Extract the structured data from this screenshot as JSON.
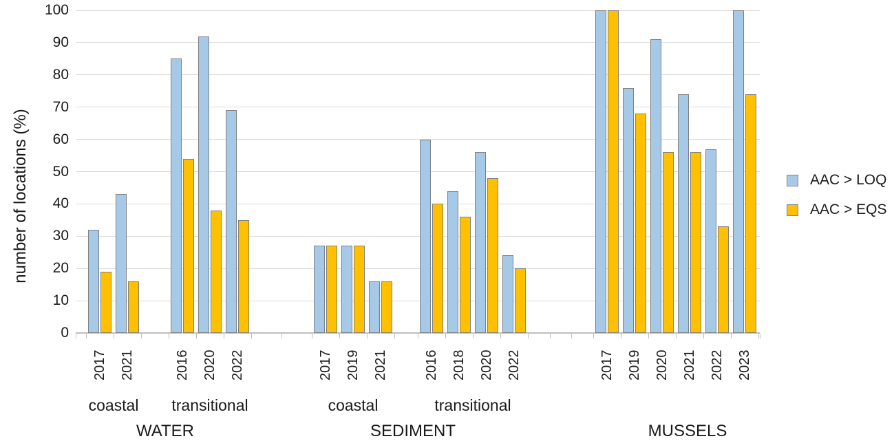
{
  "chart_data": {
    "type": "bar",
    "title": "",
    "ylabel": "number of locations (%)",
    "xlabel": "",
    "ylim": [
      0,
      100
    ],
    "yticks": [
      0,
      10,
      20,
      30,
      40,
      50,
      60,
      70,
      80,
      90,
      100
    ],
    "grid": true,
    "legend_position": "right",
    "legend": [
      {
        "name": "AAC > LOQ",
        "color": "#A6C9E8",
        "border": "#808080"
      },
      {
        "name": "AAC > EQS",
        "color": "#FFC000",
        "border": "#808080"
      }
    ],
    "colors": {
      "gridline": "#D9D9D9",
      "axis": "#BFBFBF",
      "text": "#1A1A1A"
    },
    "sections": [
      {
        "label": "WATER",
        "subgroups": [
          {
            "label": "coastal",
            "years": [
              "2017",
              "2021"
            ],
            "series": [
              {
                "name": "AAC > LOQ",
                "values": [
                  32,
                  43
                ]
              },
              {
                "name": "AAC > EQS",
                "values": [
                  19,
                  16
                ]
              }
            ]
          },
          {
            "label": "transitional",
            "years": [
              "2016",
              "2020",
              "2022"
            ],
            "series": [
              {
                "name": "AAC > LOQ",
                "values": [
                  85,
                  92,
                  69
                ]
              },
              {
                "name": "AAC > EQS",
                "values": [
                  54,
                  38,
                  35
                ]
              }
            ]
          }
        ]
      },
      {
        "label": "SEDIMENT",
        "subgroups": [
          {
            "label": "coastal",
            "years": [
              "2017",
              "2019",
              "2021"
            ],
            "series": [
              {
                "name": "AAC > LOQ",
                "values": [
                  27,
                  27,
                  16
                ]
              },
              {
                "name": "AAC > EQS",
                "values": [
                  27,
                  27,
                  16
                ]
              }
            ]
          },
          {
            "label": "transitional",
            "years": [
              "2016",
              "2018",
              "2020",
              "2022"
            ],
            "series": [
              {
                "name": "AAC > LOQ",
                "values": [
                  60,
                  44,
                  56,
                  24
                ]
              },
              {
                "name": "AAC > EQS",
                "values": [
                  40,
                  36,
                  48,
                  20
                ]
              }
            ]
          }
        ]
      },
      {
        "label": "MUSSELS",
        "subgroups": [
          {
            "label": "",
            "years": [
              "2017",
              "2019",
              "2020",
              "2021",
              "2022",
              "2023"
            ],
            "series": [
              {
                "name": "AAC > LOQ",
                "values": [
                  100,
                  76,
                  91,
                  74,
                  57,
                  100
                ]
              },
              {
                "name": "AAC > EQS",
                "values": [
                  100,
                  68,
                  56,
                  56,
                  33,
                  74
                ]
              }
            ]
          }
        ]
      }
    ]
  }
}
